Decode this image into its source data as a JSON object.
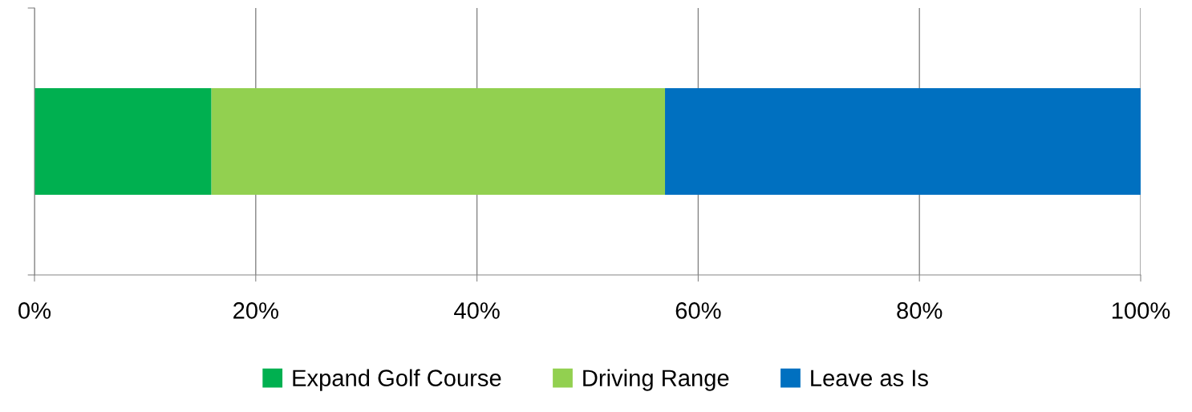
{
  "chart_data": {
    "type": "bar",
    "orientation": "horizontal",
    "stacked": true,
    "categories": [
      null
    ],
    "series": [
      {
        "name": "Expand Golf Course",
        "color": "#00b050",
        "values": [
          16
        ]
      },
      {
        "name": "Driving Range",
        "color": "#92d050",
        "values": [
          41
        ]
      },
      {
        "name": "Leave as Is",
        "color": "#0070c0",
        "values": [
          43
        ]
      }
    ],
    "xlim": [
      0,
      100
    ],
    "xticks": [
      {
        "value": 0,
        "label": "0%"
      },
      {
        "value": 20,
        "label": "20%"
      },
      {
        "value": 40,
        "label": "40%"
      },
      {
        "value": 60,
        "label": "60%"
      },
      {
        "value": 80,
        "label": "80%"
      },
      {
        "value": 100,
        "label": "100%"
      }
    ],
    "grid": "x",
    "legend": "bottom"
  }
}
